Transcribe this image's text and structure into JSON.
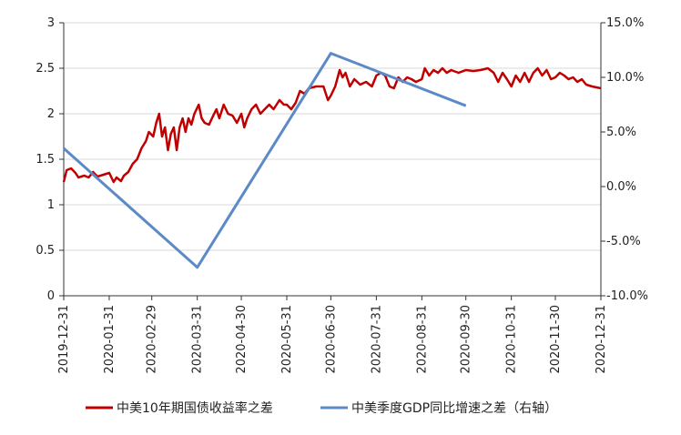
{
  "chart_data": {
    "type": "line",
    "x_axis": {
      "ticks": [
        "2019-12-31",
        "2020-01-31",
        "2020-02-29",
        "2020-03-31",
        "2020-04-30",
        "2020-05-31",
        "2020-06-30",
        "2020-07-31",
        "2020-08-31",
        "2020-09-30",
        "2020-10-31",
        "2020-11-30",
        "2020-12-31"
      ],
      "range": [
        "2019-12-31",
        "2020-12-31"
      ]
    },
    "y_left": {
      "ticks": [
        "0",
        "0.5",
        "1",
        "1.5",
        "2",
        "2.5",
        "3"
      ],
      "range": [
        0,
        3
      ]
    },
    "y_right": {
      "ticks": [
        "-10.0%",
        "-5.0%",
        "0.0%",
        "5.0%",
        "10.0%",
        "15.0%"
      ],
      "range": [
        -10,
        15
      ]
    },
    "grid": "horizontal",
    "legend_position": "bottom",
    "series": [
      {
        "name": "中美10年期国债收益率之差",
        "axis": "left",
        "color": "#c00000",
        "points": [
          [
            "2019-12-31",
            1.25
          ],
          [
            "2020-01-02",
            1.38
          ],
          [
            "2020-01-05",
            1.4
          ],
          [
            "2020-01-08",
            1.35
          ],
          [
            "2020-01-10",
            1.3
          ],
          [
            "2020-01-14",
            1.32
          ],
          [
            "2020-01-17",
            1.3
          ],
          [
            "2020-01-20",
            1.36
          ],
          [
            "2020-01-23",
            1.31
          ],
          [
            "2020-01-31",
            1.35
          ],
          [
            "2020-02-03",
            1.25
          ],
          [
            "2020-02-05",
            1.3
          ],
          [
            "2020-02-08",
            1.26
          ],
          [
            "2020-02-10",
            1.32
          ],
          [
            "2020-02-13",
            1.36
          ],
          [
            "2020-02-16",
            1.45
          ],
          [
            "2020-02-19",
            1.5
          ],
          [
            "2020-02-22",
            1.62
          ],
          [
            "2020-02-25",
            1.7
          ],
          [
            "2020-02-27",
            1.8
          ],
          [
            "2020-03-01",
            1.75
          ],
          [
            "2020-03-03",
            1.9
          ],
          [
            "2020-03-05",
            2.0
          ],
          [
            "2020-03-07",
            1.75
          ],
          [
            "2020-03-09",
            1.85
          ],
          [
            "2020-03-11",
            1.6
          ],
          [
            "2020-03-13",
            1.78
          ],
          [
            "2020-03-15",
            1.85
          ],
          [
            "2020-03-17",
            1.6
          ],
          [
            "2020-03-19",
            1.85
          ],
          [
            "2020-03-21",
            1.95
          ],
          [
            "2020-03-23",
            1.8
          ],
          [
            "2020-03-25",
            1.95
          ],
          [
            "2020-03-27",
            1.88
          ],
          [
            "2020-03-29",
            2.0
          ],
          [
            "2020-04-01",
            2.1
          ],
          [
            "2020-04-03",
            1.95
          ],
          [
            "2020-04-05",
            1.9
          ],
          [
            "2020-04-08",
            1.88
          ],
          [
            "2020-04-10",
            1.95
          ],
          [
            "2020-04-13",
            2.05
          ],
          [
            "2020-04-15",
            1.95
          ],
          [
            "2020-04-18",
            2.1
          ],
          [
            "2020-04-21",
            2.0
          ],
          [
            "2020-04-24",
            1.98
          ],
          [
            "2020-04-27",
            1.9
          ],
          [
            "2020-04-30",
            2.0
          ],
          [
            "2020-05-02",
            1.85
          ],
          [
            "2020-05-04",
            1.95
          ],
          [
            "2020-05-07",
            2.05
          ],
          [
            "2020-05-10",
            2.1
          ],
          [
            "2020-05-13",
            2.0
          ],
          [
            "2020-05-16",
            2.05
          ],
          [
            "2020-05-19",
            2.1
          ],
          [
            "2020-05-22",
            2.05
          ],
          [
            "2020-05-26",
            2.15
          ],
          [
            "2020-05-29",
            2.1
          ],
          [
            "2020-05-31",
            2.1
          ],
          [
            "2020-06-03",
            2.05
          ],
          [
            "2020-06-06",
            2.12
          ],
          [
            "2020-06-09",
            2.25
          ],
          [
            "2020-06-12",
            2.22
          ],
          [
            "2020-06-15",
            2.28
          ],
          [
            "2020-06-20",
            2.3
          ],
          [
            "2020-06-25",
            2.3
          ],
          [
            "2020-06-28",
            2.15
          ],
          [
            "2020-06-30",
            2.2
          ],
          [
            "2020-07-03",
            2.3
          ],
          [
            "2020-07-06",
            2.48
          ],
          [
            "2020-07-08",
            2.4
          ],
          [
            "2020-07-10",
            2.45
          ],
          [
            "2020-07-13",
            2.3
          ],
          [
            "2020-07-16",
            2.38
          ],
          [
            "2020-07-20",
            2.32
          ],
          [
            "2020-07-24",
            2.35
          ],
          [
            "2020-07-28",
            2.3
          ],
          [
            "2020-07-31",
            2.42
          ],
          [
            "2020-08-03",
            2.45
          ],
          [
            "2020-08-06",
            2.42
          ],
          [
            "2020-08-09",
            2.3
          ],
          [
            "2020-08-12",
            2.28
          ],
          [
            "2020-08-15",
            2.4
          ],
          [
            "2020-08-18",
            2.35
          ],
          [
            "2020-08-21",
            2.4
          ],
          [
            "2020-08-24",
            2.38
          ],
          [
            "2020-08-27",
            2.35
          ],
          [
            "2020-08-31",
            2.38
          ],
          [
            "2020-09-02",
            2.5
          ],
          [
            "2020-09-05",
            2.42
          ],
          [
            "2020-09-08",
            2.48
          ],
          [
            "2020-09-11",
            2.45
          ],
          [
            "2020-09-14",
            2.5
          ],
          [
            "2020-09-17",
            2.45
          ],
          [
            "2020-09-20",
            2.48
          ],
          [
            "2020-09-25",
            2.45
          ],
          [
            "2020-09-30",
            2.48
          ],
          [
            "2020-10-05",
            2.47
          ],
          [
            "2020-10-10",
            2.48
          ],
          [
            "2020-10-15",
            2.5
          ],
          [
            "2020-10-19",
            2.45
          ],
          [
            "2020-10-22",
            2.35
          ],
          [
            "2020-10-25",
            2.45
          ],
          [
            "2020-10-28",
            2.38
          ],
          [
            "2020-10-31",
            2.3
          ],
          [
            "2020-11-03",
            2.42
          ],
          [
            "2020-11-06",
            2.35
          ],
          [
            "2020-11-09",
            2.45
          ],
          [
            "2020-11-12",
            2.35
          ],
          [
            "2020-11-15",
            2.45
          ],
          [
            "2020-11-18",
            2.5
          ],
          [
            "2020-11-21",
            2.42
          ],
          [
            "2020-11-24",
            2.48
          ],
          [
            "2020-11-27",
            2.38
          ],
          [
            "2020-11-30",
            2.4
          ],
          [
            "2020-12-03",
            2.45
          ],
          [
            "2020-12-06",
            2.42
          ],
          [
            "2020-12-09",
            2.38
          ],
          [
            "2020-12-12",
            2.4
          ],
          [
            "2020-12-15",
            2.35
          ],
          [
            "2020-12-18",
            2.38
          ],
          [
            "2020-12-21",
            2.32
          ],
          [
            "2020-12-25",
            2.3
          ],
          [
            "2020-12-31",
            2.28
          ]
        ]
      },
      {
        "name": "中美季度GDP同比增速之差（右轴）",
        "axis": "right",
        "color": "#5b8ac6",
        "points": [
          [
            "2019-12-31",
            3.5
          ],
          [
            "2020-03-31",
            -7.4
          ],
          [
            "2020-06-30",
            12.2
          ],
          [
            "2020-09-30",
            7.4
          ]
        ]
      }
    ]
  }
}
